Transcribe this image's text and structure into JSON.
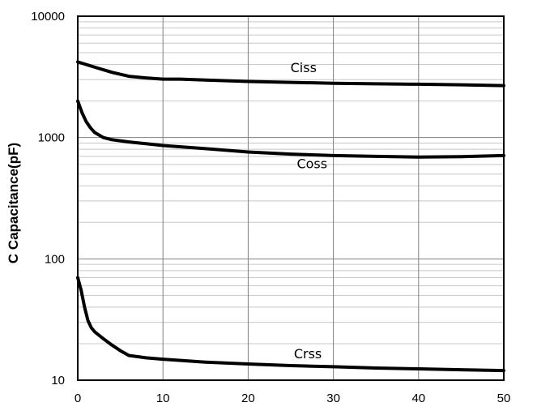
{
  "chart_data": {
    "type": "line",
    "title": "",
    "xlabel": "",
    "ylabel": "C Capacitance(pF)",
    "x_scale": "linear",
    "y_scale": "log",
    "xlim": [
      0,
      50
    ],
    "ylim": [
      10,
      10000
    ],
    "x_ticks": [
      0,
      10,
      20,
      30,
      40,
      50
    ],
    "y_ticks": [
      10,
      100,
      1000,
      10000
    ],
    "x_tick_labels": [
      "0",
      "10",
      "20",
      "30",
      "40",
      "50"
    ],
    "y_tick_labels": [
      "10",
      "100",
      "1000",
      "10000"
    ],
    "grid": true,
    "minor_grid_y": true,
    "legend": "none",
    "line_color": "#000000",
    "series": [
      {
        "name": "Ciss",
        "x": [
          0,
          2,
          4,
          6,
          8,
          10,
          12,
          15,
          20,
          25,
          30,
          35,
          40,
          45,
          50
        ],
        "y": [
          4200,
          3800,
          3450,
          3200,
          3100,
          3030,
          3030,
          2980,
          2900,
          2850,
          2800,
          2770,
          2750,
          2720,
          2680
        ]
      },
      {
        "name": "Coss",
        "x": [
          0,
          0.5,
          1,
          1.5,
          2,
          3,
          4,
          6,
          8,
          10,
          15,
          20,
          25,
          30,
          35,
          40,
          45,
          50
        ],
        "y": [
          2000,
          1600,
          1350,
          1200,
          1100,
          1000,
          960,
          920,
          890,
          860,
          810,
          760,
          730,
          710,
          700,
          690,
          695,
          710
        ]
      },
      {
        "name": "Crss",
        "x": [
          0,
          0.4,
          0.8,
          1.2,
          1.6,
          2,
          3,
          4,
          5,
          6,
          8,
          10,
          15,
          20,
          25,
          30,
          35,
          40,
          45,
          50
        ],
        "y": [
          70,
          55,
          40,
          31,
          27,
          25,
          22,
          19.5,
          17.5,
          16,
          15.3,
          14.9,
          14.1,
          13.6,
          13.2,
          12.9,
          12.6,
          12.4,
          12.2,
          12.0
        ]
      }
    ],
    "annotations": [
      {
        "text": "Ciss",
        "x": 26.5,
        "y": 3450
      },
      {
        "text": "Coss",
        "x": 27.5,
        "y": 560
      },
      {
        "text": "Crss",
        "x": 27.0,
        "y": 15.2
      }
    ]
  }
}
